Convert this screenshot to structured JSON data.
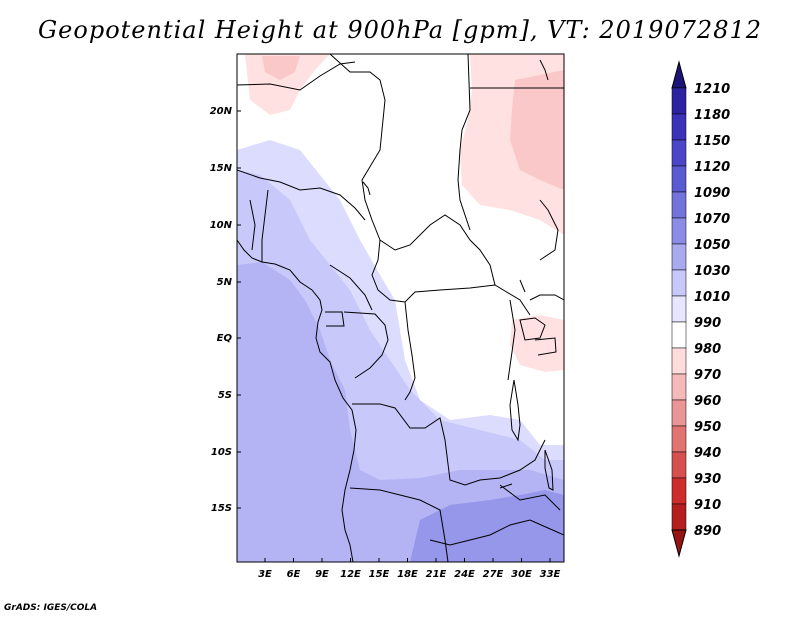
{
  "title": "Geopotential Height at 900hPa [gpm], VT: 2019072812",
  "credit": "GrADS: IGES/COLA",
  "map": {
    "lat_labels": [
      "20N",
      "15N",
      "10N",
      "5N",
      "EQ",
      "5S",
      "10S",
      "15S"
    ],
    "lon_labels": [
      "3E",
      "6E",
      "9E",
      "12E",
      "15E",
      "18E",
      "21E",
      "24E",
      "27E",
      "30E",
      "33E"
    ]
  },
  "colorbar": {
    "levels": [
      "1210",
      "1180",
      "1150",
      "1120",
      "1090",
      "1070",
      "1050",
      "1030",
      "1010",
      "990",
      "980",
      "970",
      "960",
      "950",
      "940",
      "930",
      "910",
      "890"
    ],
    "colors": [
      "#1e1478",
      "#2d23a0",
      "#3c32b9",
      "#4b46c8",
      "#5a5ad2",
      "#7373dc",
      "#8c8ce6",
      "#aaaaf0",
      "#c8c8fa",
      "#e6e6ff",
      "#ffffff",
      "#ffdcdc",
      "#f5b9b9",
      "#eb9696",
      "#e17373",
      "#d75050",
      "#cd2d2d",
      "#b41e1e",
      "#961414"
    ],
    "top_color": "#1e1478",
    "bottom_color": "#961414"
  },
  "field_colors": {
    "pale_blue": "#dcdcff",
    "light_blue": "#c8c8fa",
    "mid_blue": "#b4b4f5",
    "deep_blue": "#9696eb",
    "pale_red": "#ffe1e1",
    "light_red": "#fac8c8"
  }
}
